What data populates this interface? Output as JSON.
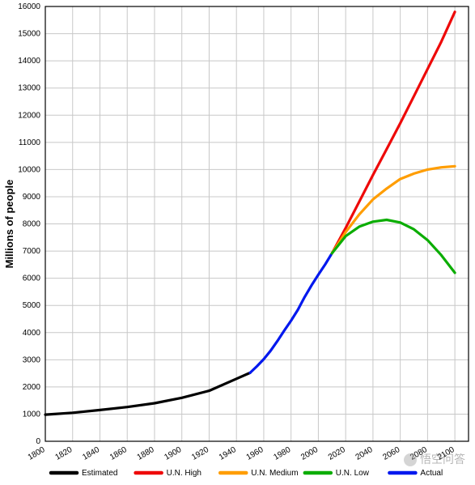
{
  "chart": {
    "type": "line",
    "background_color": "#ffffff",
    "grid_color": "#c8c8c8",
    "border_color": "#000000",
    "ylabel": "Millions of people",
    "label_fontsize": 13,
    "label_fontweight": "bold",
    "tick_fontsize": 10,
    "xlim": [
      1800,
      2110
    ],
    "ylim": [
      0,
      16000
    ],
    "xticks": [
      1800,
      1820,
      1840,
      1860,
      1880,
      1900,
      1920,
      1940,
      1960,
      1980,
      2000,
      2020,
      2040,
      2060,
      2080,
      2100
    ],
    "yticks": [
      0,
      1000,
      2000,
      3000,
      4000,
      5000,
      6000,
      7000,
      8000,
      9000,
      10000,
      11000,
      12000,
      13000,
      14000,
      15000,
      16000
    ],
    "line_width": 3.2,
    "series": {
      "estimated": {
        "label": "Estimated",
        "color": "#000000",
        "points": [
          [
            1800,
            980
          ],
          [
            1820,
            1050
          ],
          [
            1840,
            1150
          ],
          [
            1860,
            1260
          ],
          [
            1880,
            1400
          ],
          [
            1900,
            1600
          ],
          [
            1920,
            1860
          ],
          [
            1940,
            2300
          ],
          [
            1950,
            2520
          ]
        ]
      },
      "actual": {
        "label": "Actual",
        "color": "#0018ee",
        "points": [
          [
            1950,
            2520
          ],
          [
            1955,
            2760
          ],
          [
            1960,
            3020
          ],
          [
            1965,
            3330
          ],
          [
            1970,
            3690
          ],
          [
            1975,
            4070
          ],
          [
            1980,
            4440
          ],
          [
            1985,
            4840
          ],
          [
            1990,
            5310
          ],
          [
            1995,
            5740
          ],
          [
            2000,
            6130
          ],
          [
            2005,
            6510
          ],
          [
            2010,
            6920
          ]
        ]
      },
      "high": {
        "label": "U.N. High",
        "color": "#ee0909",
        "points": [
          [
            2010,
            6920
          ],
          [
            2020,
            7850
          ],
          [
            2030,
            8820
          ],
          [
            2040,
            9800
          ],
          [
            2050,
            10750
          ],
          [
            2060,
            11700
          ],
          [
            2070,
            12700
          ],
          [
            2080,
            13700
          ],
          [
            2090,
            14700
          ],
          [
            2100,
            15800
          ]
        ]
      },
      "medium": {
        "label": "U.N. Medium",
        "color": "#ff9d00",
        "points": [
          [
            2010,
            6920
          ],
          [
            2020,
            7700
          ],
          [
            2030,
            8350
          ],
          [
            2040,
            8900
          ],
          [
            2050,
            9300
          ],
          [
            2060,
            9650
          ],
          [
            2070,
            9850
          ],
          [
            2080,
            10000
          ],
          [
            2090,
            10080
          ],
          [
            2100,
            10120
          ]
        ]
      },
      "low": {
        "label": "U.N. Low",
        "color": "#0bad02",
        "points": [
          [
            2010,
            6920
          ],
          [
            2020,
            7550
          ],
          [
            2030,
            7900
          ],
          [
            2040,
            8080
          ],
          [
            2050,
            8150
          ],
          [
            2060,
            8050
          ],
          [
            2070,
            7800
          ],
          [
            2080,
            7400
          ],
          [
            2090,
            6850
          ],
          [
            2100,
            6200
          ]
        ]
      }
    },
    "legend_order": [
      "estimated",
      "high",
      "medium",
      "low",
      "actual"
    ]
  },
  "watermark": {
    "text": "悟空问答"
  }
}
